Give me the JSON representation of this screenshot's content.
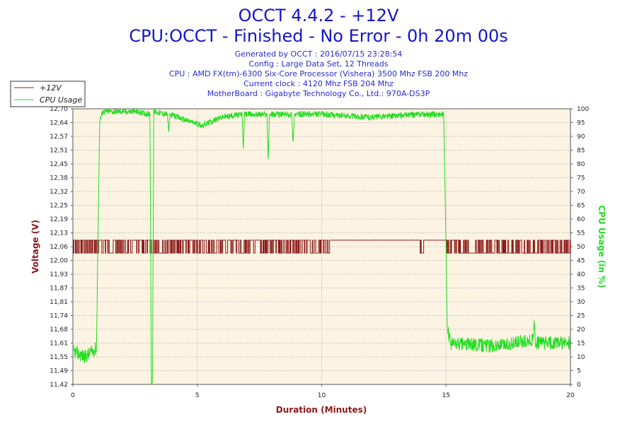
{
  "header": {
    "title": "OCCT 4.4.2 - +12V",
    "subtitle": "CPU:OCCT - Finished - No Error - 0h 20m 00s",
    "info": [
      "Generated by OCCT : 2016/07/15 23:28:54",
      "Config : Large Data Set, 12 Threads",
      "CPU : AMD FX(tm)-6300 Six-Core Processor (Vishera) 3500 Mhz FSB 200 Mhz",
      "Current clock : 4120 Mhz FSB 204 Mhz",
      "MotherBoard : Gigabyte Technology Co., Ltd.: 970A-DS3P"
    ]
  },
  "colors": {
    "voltage": "#8b1a1a",
    "cpu": "#22dd22",
    "plot_bg": "#fdf3e3",
    "grid": "#aaaaaa",
    "title": "#1515c8",
    "voltage_axis_title": "#8b1a1a",
    "cpu_axis_title": "#22dd22",
    "x_axis_title": "#8b1a1a"
  },
  "chart_data": {
    "type": "line",
    "title": "OCCT 4.4.2 - +12V",
    "xlabel": "Duration (Minutes)",
    "ylabel_left": "Voltage (V)",
    "ylabel_right": "CPU Usage (in %)",
    "xlim": [
      0,
      20
    ],
    "ylim_left": [
      11.42,
      12.7
    ],
    "ylim_right": [
      0,
      100
    ],
    "x_ticks": [
      "0",
      "5",
      "10",
      "15",
      "20"
    ],
    "y_left_ticks": [
      "11,42",
      "11,49",
      "11,55",
      "11,61",
      "11,68",
      "11,74",
      "11,81",
      "11,87",
      "11,93",
      "12,00",
      "12,06",
      "12,13",
      "12,19",
      "12,25",
      "12,32",
      "12,38",
      "12,45",
      "12,51",
      "12,57",
      "12,64",
      "12,70"
    ],
    "y_right_ticks": [
      "0",
      "5",
      "10",
      "15",
      "20",
      "25",
      "30",
      "35",
      "40",
      "45",
      "50",
      "55",
      "60",
      "65",
      "70",
      "75",
      "80",
      "85",
      "90",
      "95",
      "100"
    ],
    "grid": true,
    "legend_position": "top-left",
    "series": [
      {
        "name": "+12V",
        "description_of_shape": "Toggles between about 12.03 V and 12.09 V for the whole run; mostly at 12.09 V from ~10.3 to 15 min with brief dips near 14 min.",
        "low": 12.03,
        "high": 12.09,
        "points": [
          [
            0,
            12.03
          ],
          [
            0.3,
            12.09
          ],
          [
            0.6,
            12.03
          ],
          [
            1.2,
            12.09
          ],
          [
            1.35,
            12.03
          ],
          [
            2.0,
            12.09
          ],
          [
            4.5,
            12.03
          ],
          [
            10.3,
            12.09
          ],
          [
            14.0,
            12.03
          ],
          [
            14.05,
            12.09
          ],
          [
            15.0,
            12.03
          ],
          [
            20.0,
            12.03
          ]
        ]
      },
      {
        "name": "CPU Usage",
        "points": [
          [
            0,
            12
          ],
          [
            0.5,
            10
          ],
          [
            0.9,
            13
          ],
          [
            0.95,
            12
          ],
          [
            1.0,
            50
          ],
          [
            1.08,
            96
          ],
          [
            1.2,
            99
          ],
          [
            2.5,
            99
          ],
          [
            3.1,
            98
          ],
          [
            3.15,
            2
          ],
          [
            3.2,
            0
          ],
          [
            3.25,
            99
          ],
          [
            3.8,
            98
          ],
          [
            3.85,
            91
          ],
          [
            3.9,
            98
          ],
          [
            4.5,
            96
          ],
          [
            5.2,
            94
          ],
          [
            6.0,
            97
          ],
          [
            6.8,
            98
          ],
          [
            6.85,
            85
          ],
          [
            6.9,
            98
          ],
          [
            7.8,
            98
          ],
          [
            7.85,
            81
          ],
          [
            7.9,
            98
          ],
          [
            8.8,
            98
          ],
          [
            8.85,
            87
          ],
          [
            8.9,
            98
          ],
          [
            10.0,
            98
          ],
          [
            12.0,
            97
          ],
          [
            14.0,
            98
          ],
          [
            14.9,
            98
          ],
          [
            15.0,
            50
          ],
          [
            15.05,
            20
          ],
          [
            15.2,
            15
          ],
          [
            17.0,
            14
          ],
          [
            18.5,
            16
          ],
          [
            18.55,
            22
          ],
          [
            18.6,
            15
          ],
          [
            20.0,
            15
          ]
        ]
      }
    ]
  }
}
